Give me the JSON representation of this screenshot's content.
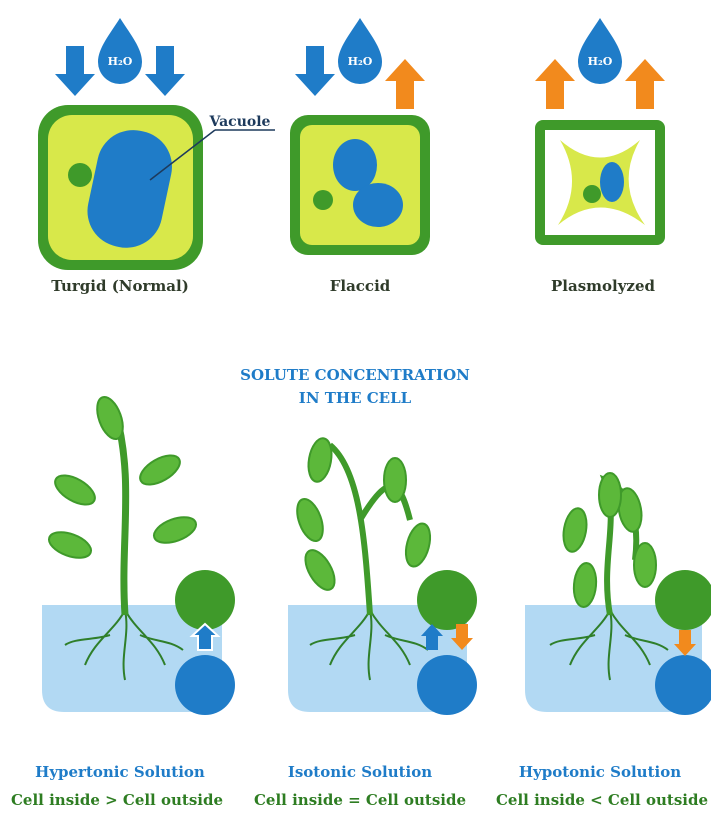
{
  "cells": [
    {
      "label": "Turgid (Normal)",
      "drop_label": "H₂O"
    },
    {
      "label": "Flaccid",
      "drop_label": "H₂O"
    },
    {
      "label": "Plasmolyzed",
      "drop_label": "H₂O"
    }
  ],
  "vacuole_label": "Vacuole",
  "heading": [
    "SOLUTE CONCENTRATION",
    "IN THE CELL"
  ],
  "solutions": [
    {
      "name": "Hypertonic Solution",
      "relation": "Cell inside > Cell outside"
    },
    {
      "name": "Isotonic Solution",
      "relation": "Cell inside = Cell outside"
    },
    {
      "name": "Hypotonic Solution",
      "relation": "Cell inside < Cell outside"
    }
  ]
}
